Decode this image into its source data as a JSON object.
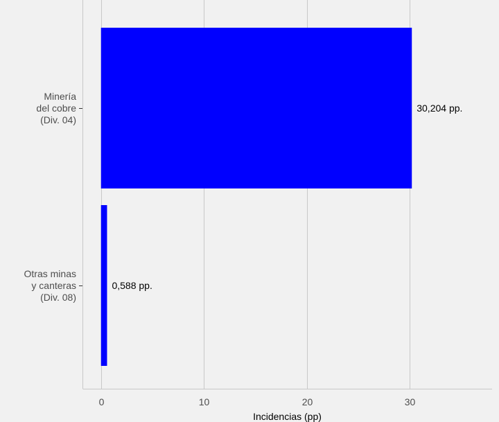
{
  "chart_data": {
    "type": "bar",
    "orientation": "horizontal",
    "categories": [
      [
        "Minería",
        "del cobre",
        "(Div. 04)"
      ],
      [
        "Otras minas",
        "y canteras",
        "(Div. 08)"
      ]
    ],
    "values": [
      30.204,
      0.588
    ],
    "data_labels": [
      "30,204 pp.",
      "0,588 pp."
    ],
    "xlabel": "Incidencias (pp)",
    "ylabel": "",
    "xlim": [
      -1.8,
      38
    ],
    "xticks": [
      0,
      10,
      20,
      30
    ],
    "xtick_labels": [
      "0",
      "10",
      "20",
      "30"
    ],
    "grid": "vertical major",
    "bar_color": "#0000ff",
    "background_color": "#f1f1f1",
    "grid_color": "#c8c8c8"
  }
}
